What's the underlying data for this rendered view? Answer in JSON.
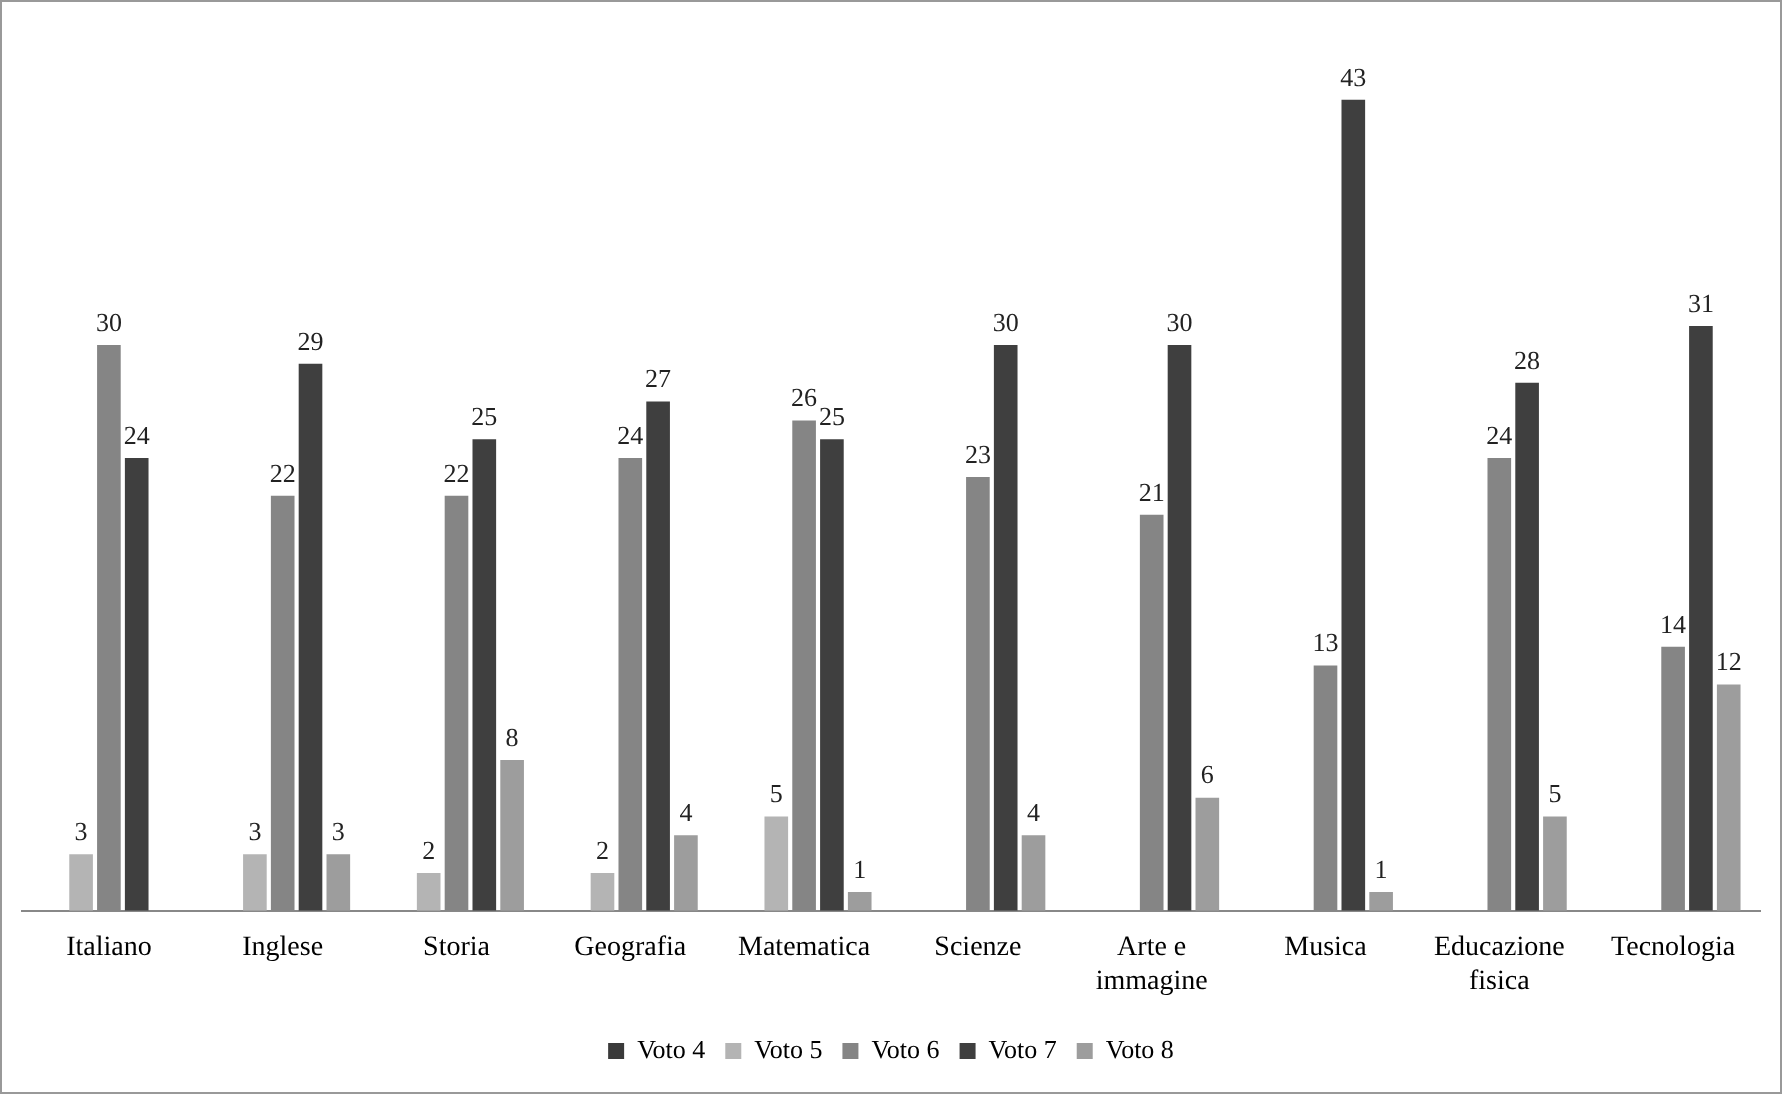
{
  "chart_data": {
    "type": "bar",
    "categories": [
      "Italiano",
      "Inglese",
      "Storia",
      "Geografia",
      "Matematica",
      "Scienze",
      "Arte e immagine",
      "Musica",
      "Educazione fisica",
      "Tecnologia"
    ],
    "series": [
      {
        "name": "Voto 4",
        "color": "#3a3a3a",
        "values": [
          null,
          null,
          null,
          null,
          null,
          null,
          null,
          null,
          null,
          null
        ]
      },
      {
        "name": "Voto 5",
        "color": "#b4b4b4",
        "values": [
          3,
          3,
          2,
          2,
          5,
          null,
          null,
          null,
          null,
          null
        ]
      },
      {
        "name": "Voto 6",
        "color": "#858585",
        "values": [
          30,
          22,
          22,
          24,
          26,
          23,
          21,
          13,
          24,
          14
        ]
      },
      {
        "name": "Voto 7",
        "color": "#3f3f3f",
        "values": [
          24,
          29,
          25,
          27,
          25,
          30,
          30,
          43,
          28,
          31
        ]
      },
      {
        "name": "Voto 8",
        "color": "#9d9d9d",
        "values": [
          null,
          3,
          8,
          4,
          1,
          4,
          6,
          1,
          5,
          12
        ]
      }
    ],
    "data_labels": true,
    "grid": false,
    "legend": "bottom"
  }
}
